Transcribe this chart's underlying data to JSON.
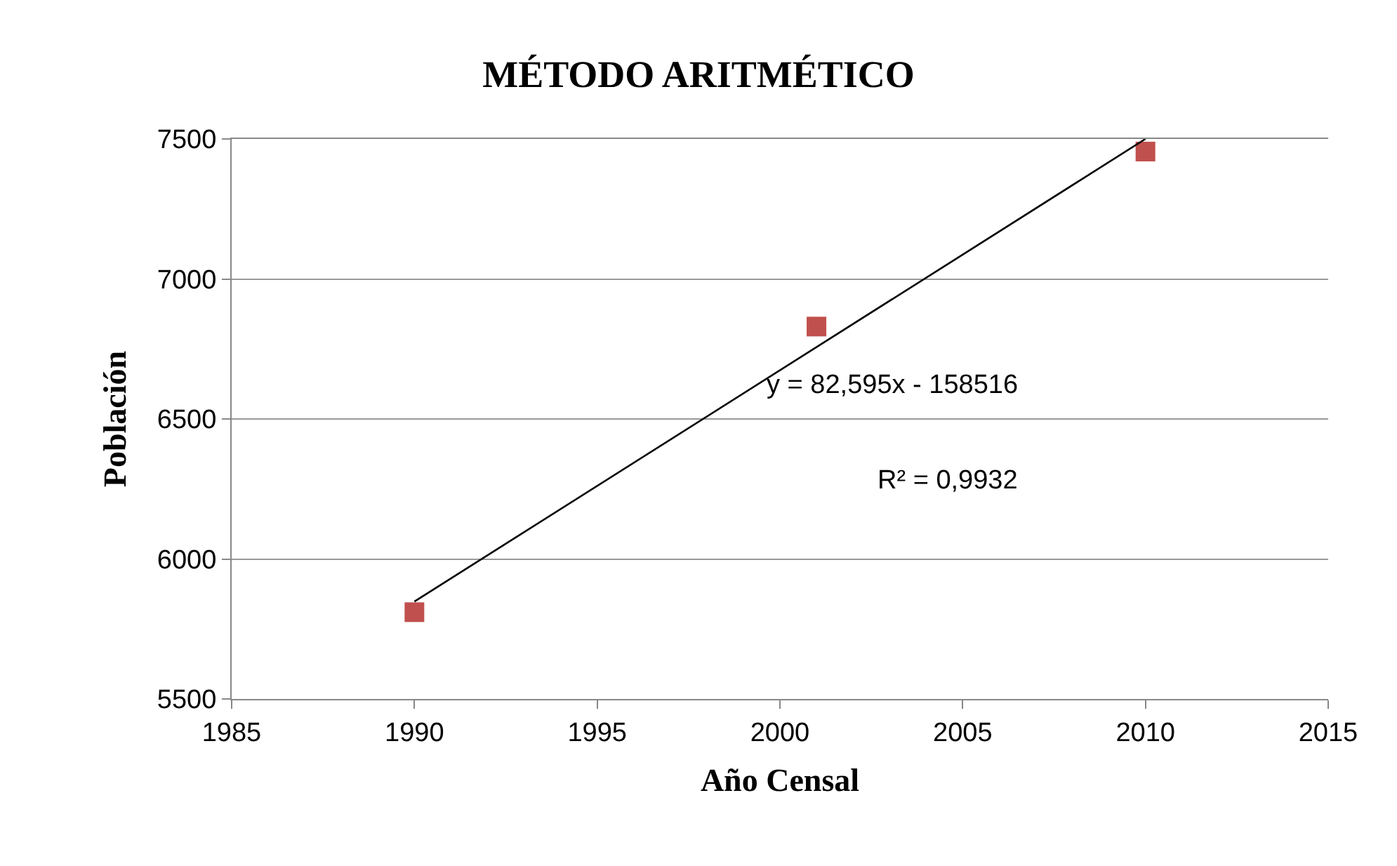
{
  "chart_data": {
    "type": "scatter",
    "title": "MÉTODO ARITMÉTICO",
    "xlabel": "Año Censal",
    "ylabel": "Población",
    "series": [
      {
        "color": "#c0504d",
        "x": [
          1990,
          2001,
          2010
        ],
        "values": [
          5810,
          6830,
          7455
        ],
        "marker": "square"
      },
      {
        "type": "line",
        "color": "#000000",
        "x": [
          1990,
          2010
        ],
        "values": [
          5848,
          7500
        ],
        "marker": "none",
        "line_style": "solid"
      }
    ],
    "annotations": [
      "y = 82,595x - 158516",
      "R² = 0,9932"
    ],
    "xlim": [
      1985,
      2015
    ],
    "xticks": [
      1985,
      1990,
      1995,
      2000,
      2005,
      2010,
      2015
    ],
    "ylim": [
      5500,
      7500
    ],
    "yticks": [
      5500,
      6000,
      6500,
      7000,
      7500
    ],
    "grid": "y"
  }
}
